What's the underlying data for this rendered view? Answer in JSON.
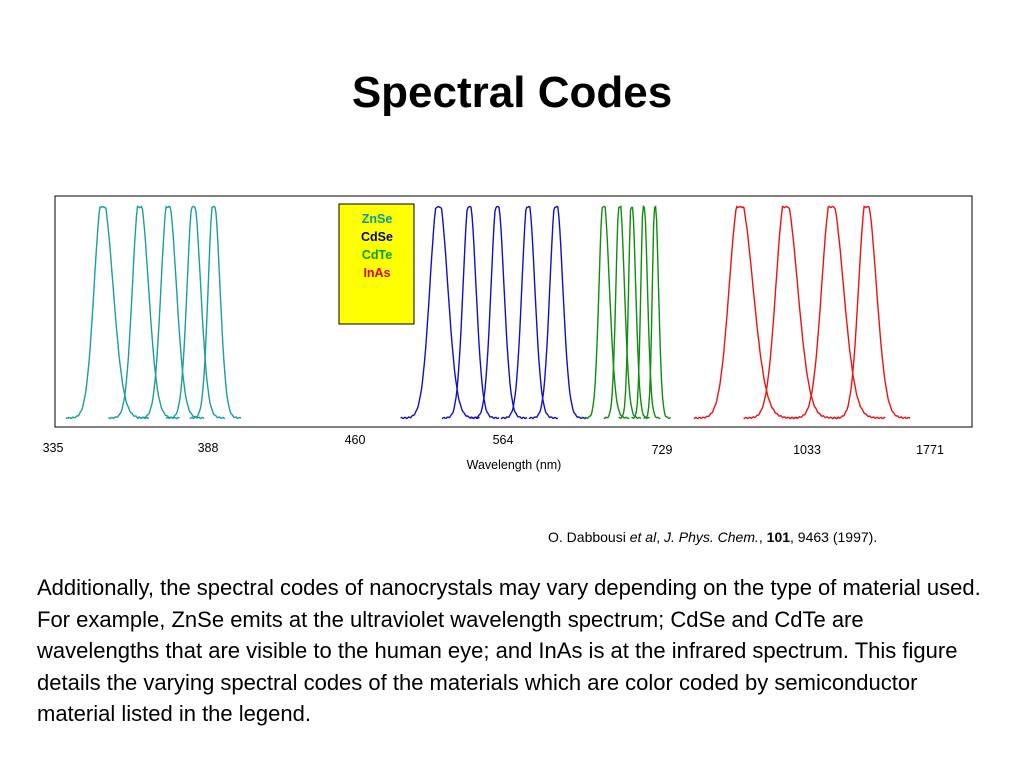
{
  "slide": {
    "title": "Spectral Codes",
    "citation": {
      "author": "O. Dabbousi ",
      "etal": "et al",
      "sep1": ", ",
      "journal": "J. Phys. Chem.",
      "sep2": ", ",
      "volume": "101",
      "rest": ", 9463 (1997)."
    },
    "body": "Additionally, the spectral codes of nanocrystals may vary depending on the type of material used.  For example, ZnSe emits at the ultraviolet wavelength spectrum; CdSe and CdTe are wavelengths that are visible to the human eye; and InAs is at the infrared spectrum.   This figure details the varying spectral codes of the materials which are color coded by semiconductor material listed in the legend."
  },
  "chart_data": {
    "type": "line",
    "title": "",
    "xlabel": "Wavelength (nm)",
    "ylabel": "",
    "x_ticks": [
      "335",
      "388",
      "460",
      "564",
      "729",
      "1033",
      "1771"
    ],
    "legend": {
      "position": "top-center",
      "background": "#ffff00",
      "entries": [
        {
          "name": "ZnSe",
          "color": "#00a0a0"
        },
        {
          "name": "CdSe",
          "color": "#000080"
        },
        {
          "name": "CdTe",
          "color": "#00a000"
        },
        {
          "name": "InAs",
          "color": "#e00000"
        }
      ]
    },
    "grid": false,
    "series": [
      {
        "name": "ZnSe",
        "color": "#1a9e9e",
        "peaks": [
          {
            "x": 0.24,
            "w": 0.2,
            "skew": 1.3
          },
          {
            "x": 0.46,
            "w": 0.17,
            "skew": 1.3
          },
          {
            "x": 0.63,
            "w": 0.17,
            "skew": 1.2
          },
          {
            "x": 0.78,
            "w": 0.15,
            "skew": 1.2
          },
          {
            "x": 0.9,
            "w": 0.13,
            "skew": 1.2
          }
        ]
      },
      {
        "name": "CdSe",
        "color": "#1010c8",
        "peaks": [
          {
            "x": 0.36,
            "w": 0.25,
            "skew": 1.1
          },
          {
            "x": 0.58,
            "w": 0.18,
            "skew": 1.1
          },
          {
            "x": 0.78,
            "w": 0.18,
            "skew": 1.1
          },
          {
            "x": 1.0,
            "w": 0.18,
            "skew": 1.1
          },
          {
            "x": 1.2,
            "w": 0.18,
            "skew": 1.1
          }
        ]
      },
      {
        "name": "CdTe",
        "color": "#108c10",
        "peaks": [
          {
            "x": 0.6,
            "w": 0.22,
            "skew": 1.4
          },
          {
            "x": 0.8,
            "w": 0.18,
            "skew": 1.4
          },
          {
            "x": 0.95,
            "w": 0.15,
            "skew": 1.4
          },
          {
            "x": 1.1,
            "w": 0.14,
            "skew": 1.4
          },
          {
            "x": 1.24,
            "w": 0.13,
            "skew": 1.4
          }
        ]
      },
      {
        "name": "InAs",
        "color": "#ee1111",
        "peaks": [
          {
            "x": 0.52,
            "w": 0.24,
            "skew": 1.3
          },
          {
            "x": 0.78,
            "w": 0.22,
            "skew": 1.3
          },
          {
            "x": 1.04,
            "w": 0.22,
            "skew": 1.3
          },
          {
            "x": 1.24,
            "w": 0.18,
            "skew": 1.3
          }
        ]
      }
    ]
  }
}
